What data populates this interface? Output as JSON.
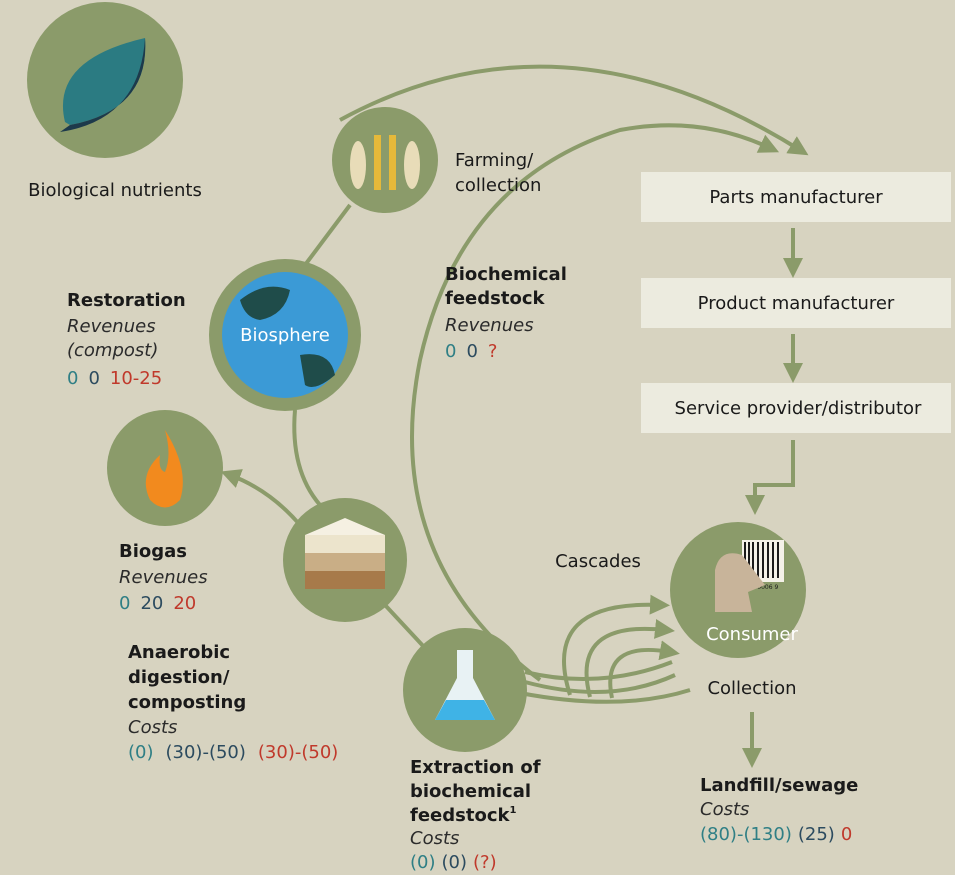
{
  "legend": {
    "label": "Biological nutrients"
  },
  "farming": {
    "lines": [
      "Farming/",
      "collection"
    ]
  },
  "chain": [
    "Parts manufacturer",
    "Product manufacturer",
    "Service provider/distributor"
  ],
  "biosphere": "Biosphere",
  "consumer": {
    "label": "Consumer",
    "barcode": "33 0006 9"
  },
  "collection": "Collection",
  "cascades": "Cascades",
  "stages": {
    "restoration": {
      "title_lines": [
        "Restoration"
      ],
      "kind": "Revenues",
      "kind_extra": "(compost)",
      "values": [
        "0",
        "0",
        "10-25"
      ]
    },
    "biochemical_feedstock": {
      "title_lines": [
        "Biochemical",
        "feedstock"
      ],
      "kind": "Revenues",
      "values": [
        "0",
        "0",
        "?"
      ]
    },
    "biogas": {
      "title_lines": [
        "Biogas"
      ],
      "kind": "Revenues",
      "values": [
        "0",
        "20",
        "20"
      ]
    },
    "anaerobic": {
      "title_lines": [
        "Anaerobic",
        "digestion/",
        "composting"
      ],
      "kind": "Costs",
      "values": [
        "(0)",
        "(30)-(50)",
        "(30)-(50)"
      ]
    },
    "extraction": {
      "title_lines": [
        "Extraction of",
        "biochemical",
        "feedstock"
      ],
      "footnote": "1",
      "kind": "Costs",
      "values": [
        "(0)",
        "(0)",
        "(?)"
      ]
    },
    "landfill": {
      "title_lines": [
        "Landfill/sewage"
      ],
      "kind": "Costs",
      "values": [
        "(80)-(130)",
        "(25)",
        "0"
      ]
    }
  }
}
